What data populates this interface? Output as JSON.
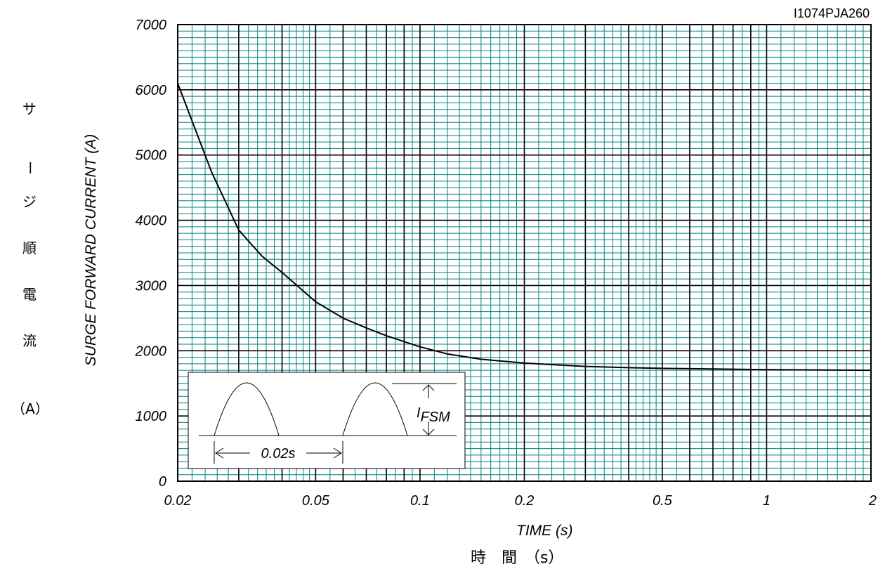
{
  "doc_code": "I1074PJA260",
  "ylabel_jp": [
    "サ",
    "ー",
    "ジ",
    "順",
    "電",
    "流"
  ],
  "ylabel_jp_unit": "（A）",
  "xlabel_jp": "時　間　（s）",
  "inset": {
    "period_label": "0.02s",
    "ifsm_main": "I",
    "ifsm_sub": "FSM"
  },
  "colors": {
    "grid_minor": "#008080",
    "grid_major": "#000000",
    "curve": "#000000"
  },
  "chart_data": {
    "type": "line",
    "title": "",
    "xlabel": "TIME (s)",
    "ylabel": "SURGE FORWARD CURRENT (A)",
    "xscale": "log",
    "xlim": [
      0.02,
      2
    ],
    "ylim": [
      0,
      7000
    ],
    "grid": true,
    "x_ticks": [
      0.02,
      0.05,
      0.1,
      0.2,
      0.5,
      1,
      2
    ],
    "x_tick_labels": [
      "0.02",
      "0.05",
      "0.1",
      "0.2",
      "0.5",
      "1",
      "2"
    ],
    "y_ticks": [
      0,
      1000,
      2000,
      3000,
      4000,
      5000,
      6000,
      7000
    ],
    "y_tick_labels": [
      "0",
      "1000",
      "2000",
      "3000",
      "4000",
      "5000",
      "6000",
      "7000"
    ],
    "series": [
      {
        "x": [
          0.02,
          0.025,
          0.03,
          0.035,
          0.04,
          0.05,
          0.06,
          0.07,
          0.08,
          0.09,
          0.1,
          0.12,
          0.15,
          0.2,
          0.3,
          0.4,
          0.5,
          0.7,
          1,
          1.5,
          2
        ],
        "values": [
          6100,
          4750,
          3850,
          3450,
          3200,
          2750,
          2500,
          2350,
          2230,
          2140,
          2060,
          1950,
          1870,
          1810,
          1760,
          1740,
          1730,
          1720,
          1710,
          1705,
          1700
        ]
      }
    ]
  }
}
